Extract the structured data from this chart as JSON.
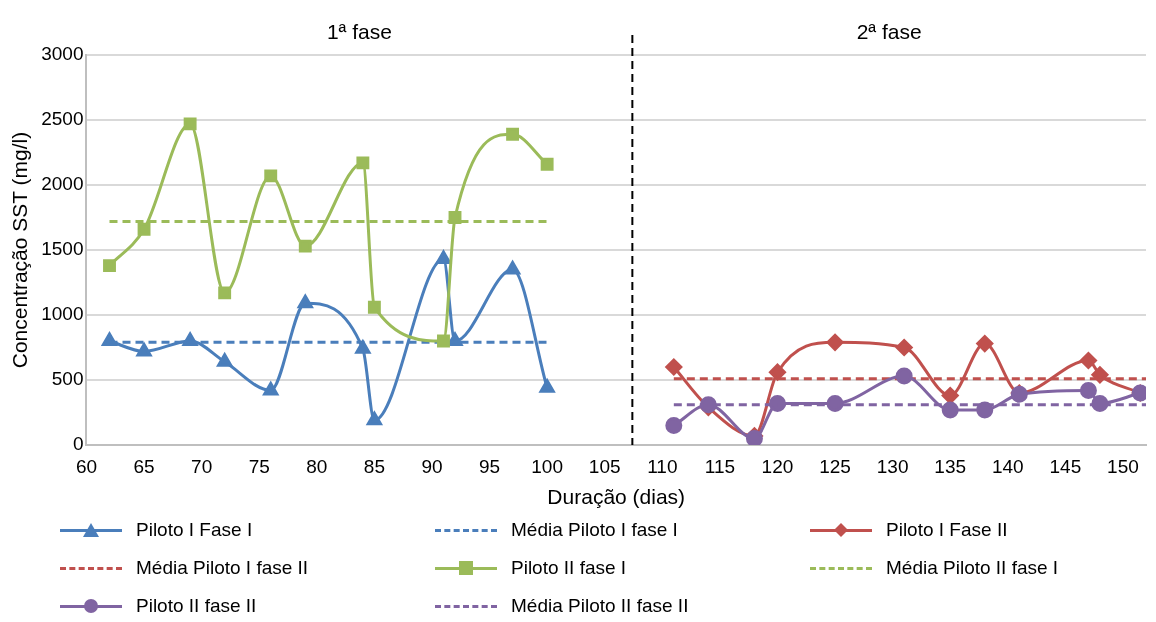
{
  "chart_data": {
    "type": "line",
    "xlabel": "Duração (dias)",
    "ylabel": "Concentração SST (mg/l)",
    "annotations": [
      "1ª fase",
      "2ª fase"
    ],
    "xlim": [
      60,
      152
    ],
    "xticks": [
      60,
      65,
      70,
      75,
      80,
      85,
      90,
      95,
      100,
      105,
      110,
      115,
      120,
      125,
      130,
      135,
      140,
      145,
      150
    ],
    "ylim": [
      0,
      3000
    ],
    "yticks": [
      0,
      500,
      1000,
      1500,
      2000,
      2500,
      3000
    ],
    "grid": "y",
    "legend": "bottom",
    "ref_lines": [
      {
        "axis": "x",
        "value": 107.4,
        "label": null,
        "color": "#000000",
        "line_style": "dashed"
      }
    ],
    "series": [
      {
        "name": "Piloto I Fase I",
        "color": "#4a7ebb",
        "marker": "triangle",
        "line_style": "solid",
        "x": [
          62,
          65,
          69,
          72,
          76,
          79,
          84,
          85,
          91,
          92,
          97,
          100
        ],
        "values": [
          800,
          720,
          800,
          640,
          420,
          1090,
          740,
          190,
          1430,
          800,
          1350,
          440
        ]
      },
      {
        "name": "Média Piloto I fase I",
        "color": "#4a7ebb",
        "marker": "none",
        "line_style": "dashed",
        "x": [
          62,
          100
        ],
        "values": [
          790,
          790
        ]
      },
      {
        "name": "Piloto I Fase II",
        "color": "#c0504d",
        "marker": "diamond",
        "line_style": "solid",
        "x": [
          111,
          114,
          118,
          120,
          125,
          131,
          135,
          138,
          141,
          147,
          148,
          151.5
        ],
        "values": [
          600,
          290,
          70,
          560,
          790,
          750,
          380,
          780,
          400,
          650,
          540,
          400
        ]
      },
      {
        "name": "Média Piloto I fase II",
        "color": "#c0504d",
        "marker": "none",
        "line_style": "dashed",
        "x": [
          111,
          152
        ],
        "values": [
          510,
          510
        ]
      },
      {
        "name": "Piloto II fase I",
        "color": "#9bbb59",
        "marker": "square",
        "line_style": "solid",
        "x": [
          62,
          65,
          69,
          72,
          76,
          79,
          84,
          85,
          91,
          92,
          97,
          100
        ],
        "values": [
          1380,
          1660,
          2470,
          1170,
          2070,
          1530,
          2170,
          1060,
          800,
          1750,
          2390,
          2160
        ]
      },
      {
        "name": "Média Piloto II fase I",
        "color": "#9bbb59",
        "marker": "none",
        "line_style": "dashed",
        "x": [
          62,
          100
        ],
        "values": [
          1720,
          1720
        ]
      },
      {
        "name": "Piloto II fase II",
        "color": "#8064a2",
        "marker": "circle",
        "line_style": "solid",
        "x": [
          111,
          114,
          118,
          120,
          125,
          131,
          135,
          138,
          141,
          147,
          148,
          151.5
        ],
        "values": [
          150,
          310,
          50,
          320,
          320,
          530,
          270,
          270,
          390,
          420,
          320,
          400
        ]
      },
      {
        "name": "Média Piloto II fase II",
        "color": "#8064a2",
        "marker": "none",
        "line_style": "dashed",
        "x": [
          111,
          152
        ],
        "values": [
          310,
          310
        ]
      }
    ]
  }
}
